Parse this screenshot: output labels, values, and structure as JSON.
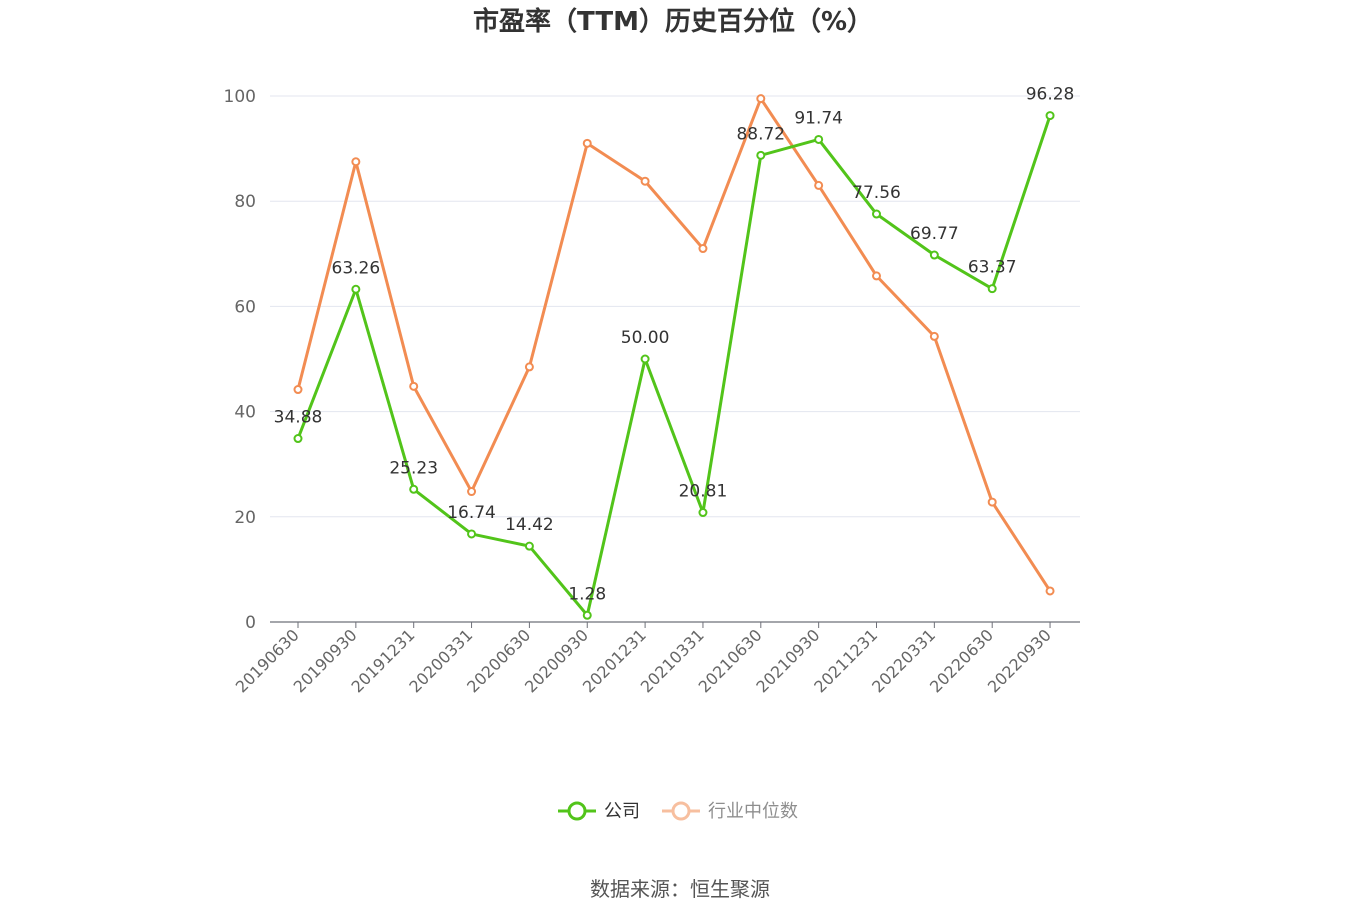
{
  "chart_data": {
    "type": "line",
    "title": "市盈率（TTM）历史百分位（%）",
    "categories": [
      "20190630",
      "20190930",
      "20191231",
      "20200331",
      "20200630",
      "20200930",
      "20201231",
      "20210331",
      "20210630",
      "20210930",
      "20211231",
      "20220331",
      "20220630",
      "20220930"
    ],
    "ylim": [
      0,
      100
    ],
    "yticks": [
      0,
      20,
      40,
      60,
      80,
      100
    ],
    "grid": true,
    "legend_position": "bottom",
    "series": [
      {
        "name": "公司",
        "color": "#52c41a",
        "values": [
          34.88,
          63.26,
          25.23,
          16.74,
          14.42,
          1.28,
          50.0,
          20.81,
          88.72,
          91.74,
          77.56,
          69.77,
          63.37,
          96.28
        ],
        "labels": [
          "34.88",
          "63.26",
          "25.23",
          "16.74",
          "14.42",
          "1.28",
          "50.00",
          "20.81",
          "88.72",
          "91.74",
          "77.56",
          "69.77",
          "63.37",
          "96.28"
        ]
      },
      {
        "name": "行业中位数",
        "color": "#f28c52",
        "values": [
          44.2,
          87.5,
          44.8,
          24.8,
          48.5,
          91.0,
          83.8,
          71.0,
          99.5,
          83.0,
          65.8,
          54.3,
          22.8,
          5.9
        ]
      }
    ]
  },
  "footer": {
    "source": "数据来源：恒生聚源"
  }
}
